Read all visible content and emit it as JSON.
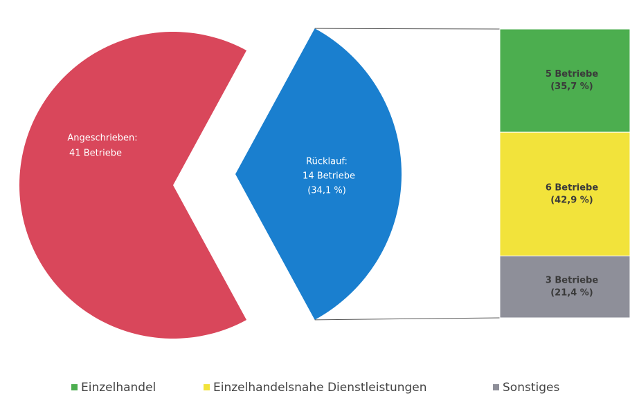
{
  "chart_data": {
    "type": "bar-of-pie",
    "pie": {
      "names": [
        "Angeschrieben:",
        "Rücklauf:"
      ],
      "values": [
        41,
        14
      ],
      "value_labels": [
        "41 Betriebe",
        "14 Betriebe"
      ],
      "colors": [
        "#d9475b",
        "#1a7fcf"
      ],
      "percent": 34.1,
      "percent_label": "(34,1 %)"
    },
    "bar": {
      "series": [
        {
          "name": "Einzelhandel",
          "color": "#4cae4f",
          "value": 5,
          "label": "5 Betriebe",
          "percent": 35.7,
          "percent_label": "(35,7 %)"
        },
        {
          "name": "Einzelhandelsnahe Dienstleistungen",
          "color": "#f2e33b",
          "value": 6,
          "label": "6 Betriebe",
          "percent": 42.9,
          "percent_label": "(42,9 %)"
        },
        {
          "name": "Sonstiges",
          "color": "#8e8f99",
          "value": 3,
          "label": "3 Betriebe",
          "percent": 21.4,
          "percent_label": "(21,4 %)"
        }
      ]
    }
  }
}
